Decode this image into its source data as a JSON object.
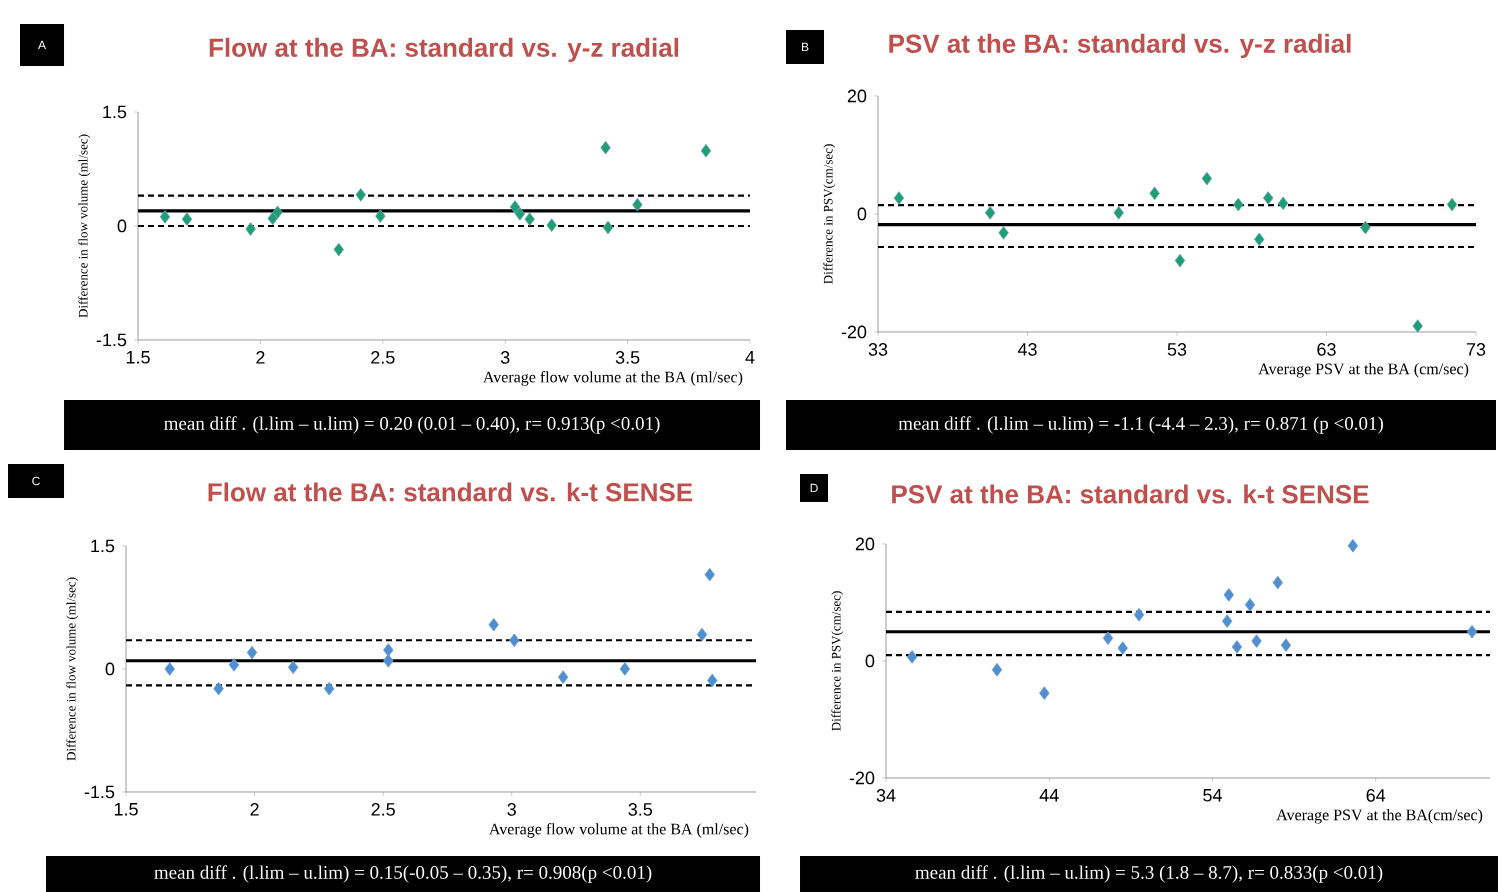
{
  "chart_data": [
    {
      "type": "scatter",
      "title": "Flow at the BA: standard vs. y-z radial",
      "xlabel": "Average flow volume at the BA (ml/sec)",
      "ylabel": "Difference in flow volume (ml/sec)",
      "annotations": [
        "A",
        "mean diff . (l.lim – u.lim) = 0.20 (0.01 – 0.40), r= 0.913(p <0.01)"
      ],
      "x": [
        1.61,
        1.7,
        1.96,
        2.05,
        2.07,
        2.32,
        2.41,
        2.49,
        3.04,
        3.06,
        3.1,
        3.19,
        3.41,
        3.42,
        3.54,
        3.82
      ],
      "values": [
        0.12,
        0.09,
        -0.04,
        0.1,
        0.18,
        -0.31,
        0.41,
        0.13,
        0.25,
        0.16,
        0.09,
        0.01,
        1.03,
        -0.02,
        0.28,
        0.99
      ],
      "color": "#1f9e6e",
      "marker": "diamond",
      "xlim": [
        1.5,
        4
      ],
      "xticks": [
        1.5,
        2,
        2.5,
        3,
        3.5,
        4
      ],
      "ylim": [
        -1.5,
        1.5
      ],
      "yticks": [
        -1.5,
        0,
        1.5
      ],
      "ref_lines": [
        {
          "axis": "y",
          "value": 0.2,
          "line_style": "solid"
        },
        {
          "axis": "y",
          "value": 0.4,
          "line_style": "dashed"
        },
        {
          "axis": "y",
          "value": 0.0,
          "line_style": "dashed"
        }
      ]
    },
    {
      "type": "scatter",
      "title": "PSV at the BA: standard vs. y-z radial",
      "xlabel": "Average PSV at the BA (cm/sec)",
      "ylabel": "Difference in PSV(cm/sec)",
      "annotations": [
        "B",
        "mean diff . (l.lim – u.lim) = -1.1 (-4.4 – 2.3), r= 0.871 (p <0.01)"
      ],
      "x": [
        34.4,
        40.5,
        41.4,
        49.1,
        51.5,
        53.2,
        55.0,
        57.1,
        58.5,
        59.1,
        60.1,
        65.6,
        69.1,
        71.4
      ],
      "values": [
        2.7,
        0.2,
        -3.2,
        0.2,
        3.5,
        -7.9,
        6.0,
        1.6,
        -4.3,
        2.7,
        1.8,
        -2.3,
        -19.0,
        1.6
      ],
      "color": "#1f9e6e",
      "marker": "diamond",
      "xlim": [
        33,
        73
      ],
      "xticks": [
        33,
        43,
        53,
        63,
        73
      ],
      "ylim": [
        -20,
        20
      ],
      "yticks": [
        -20,
        0,
        20
      ],
      "ref_lines": [
        {
          "axis": "y",
          "value": -1.8,
          "line_style": "solid"
        },
        {
          "axis": "y",
          "value": 1.5,
          "line_style": "dashed"
        },
        {
          "axis": "y",
          "value": -5.6,
          "line_style": "dashed"
        }
      ]
    },
    {
      "type": "scatter",
      "title": "Flow at the BA: standard vs. k-t SENSE",
      "xlabel": "Average flow volume at the BA (ml/sec)",
      "ylabel": "Difference in flow volume (ml/sec)",
      "annotations": [
        "C",
        "mean diff . (l.lim – u.lim) = 0.15(-0.05 – 0.35), r= 0.908(p <0.01)"
      ],
      "x": [
        1.67,
        1.86,
        1.92,
        1.99,
        2.15,
        2.29,
        2.52,
        2.52,
        2.93,
        3.01,
        3.2,
        3.44,
        3.77,
        3.74,
        3.78
      ],
      "values": [
        0.0,
        -0.24,
        0.05,
        0.2,
        0.02,
        -0.24,
        0.23,
        0.1,
        0.54,
        0.35,
        -0.1,
        0.0,
        1.15,
        0.42,
        -0.14
      ],
      "color": "#4f8fd0",
      "marker": "diamond",
      "xlim": [
        1.5,
        3.95
      ],
      "xticks": [
        1.5,
        2,
        2.5,
        3,
        3.5
      ],
      "ylim": [
        -1.5,
        1.5
      ],
      "yticks": [
        -1.5,
        0,
        1.5
      ],
      "ref_lines": [
        {
          "axis": "y",
          "value": 0.1,
          "line_style": "solid"
        },
        {
          "axis": "y",
          "value": 0.35,
          "line_style": "dashed"
        },
        {
          "axis": "y",
          "value": -0.2,
          "line_style": "dashed"
        }
      ]
    },
    {
      "type": "scatter",
      "title": "PSV at the BA: standard vs. k-t SENSE",
      "xlabel": "Average PSV at the BA(cm/sec)",
      "ylabel": "Difference in PSV(cm/sec)",
      "annotations": [
        "D",
        "mean diff . (l.lim – u.lim) = 5.3 (1.8 – 8.7), r= 0.833(p <0.01)"
      ],
      "x": [
        35.6,
        40.8,
        43.7,
        47.6,
        48.5,
        49.5,
        54.9,
        55.0,
        55.5,
        56.3,
        56.7,
        58.0,
        58.5,
        62.6,
        69.9
      ],
      "values": [
        0.7,
        -1.5,
        -5.5,
        3.9,
        2.2,
        7.9,
        6.8,
        11.3,
        2.4,
        9.6,
        3.4,
        13.4,
        2.7,
        19.7,
        5.0
      ],
      "color": "#4f8fd0",
      "marker": "diamond",
      "xlim": [
        34,
        71
      ],
      "xticks": [
        34,
        44,
        54,
        64
      ],
      "ylim": [
        -20,
        20
      ],
      "yticks": [
        -20,
        0,
        20
      ],
      "ref_lines": [
        {
          "axis": "y",
          "value": 5.0,
          "line_style": "solid"
        },
        {
          "axis": "y",
          "value": 8.4,
          "line_style": "dashed"
        },
        {
          "axis": "y",
          "value": 1.0,
          "line_style": "dashed"
        }
      ]
    }
  ]
}
